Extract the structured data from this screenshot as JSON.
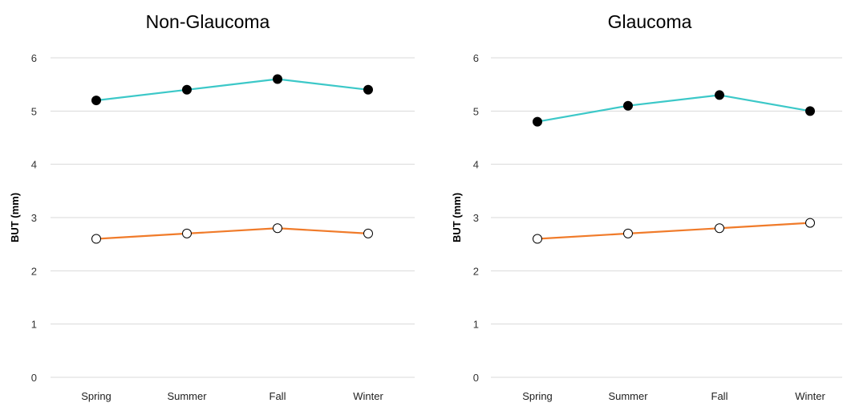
{
  "chart_data": [
    {
      "type": "line",
      "title": "Non-Glaucoma",
      "ylabel": "BUT (mm)",
      "xlabel": "",
      "categories": [
        "Spring",
        "Summer",
        "Fall",
        "Winter"
      ],
      "ylim": [
        0,
        6
      ],
      "yticks": [
        0,
        1,
        2,
        3,
        4,
        5,
        6
      ],
      "grid": true,
      "series": [
        {
          "values": [
            5.2,
            5.4,
            5.6,
            5.4
          ],
          "color": "#3cc8c8",
          "marker_fill": "#000000"
        },
        {
          "values": [
            2.6,
            2.7,
            2.8,
            2.7
          ],
          "color": "#f07b2a",
          "marker_fill": "#ffffff"
        }
      ]
    },
    {
      "type": "line",
      "title": "Glaucoma",
      "ylabel": "BUT (mm)",
      "xlabel": "",
      "categories": [
        "Spring",
        "Summer",
        "Fall",
        "Winter"
      ],
      "ylim": [
        0,
        6
      ],
      "yticks": [
        0,
        1,
        2,
        3,
        4,
        5,
        6
      ],
      "grid": true,
      "series": [
        {
          "values": [
            4.8,
            5.1,
            5.3,
            5.0
          ],
          "color": "#3cc8c8",
          "marker_fill": "#000000"
        },
        {
          "values": [
            2.6,
            2.7,
            2.8,
            2.9
          ],
          "color": "#f07b2a",
          "marker_fill": "#ffffff"
        }
      ]
    }
  ]
}
